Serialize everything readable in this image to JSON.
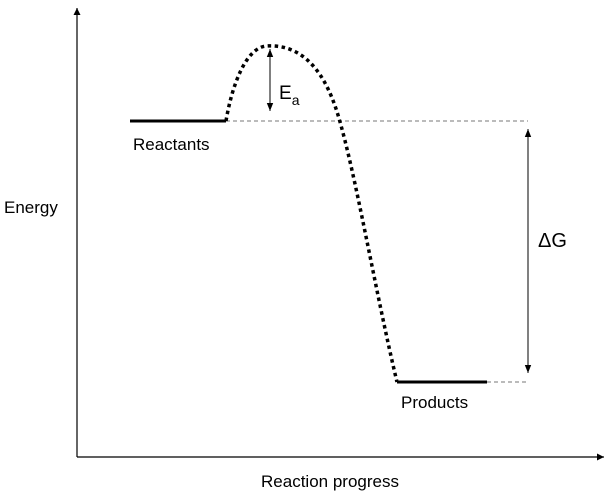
{
  "diagram": {
    "y_axis_label": "Energy",
    "x_axis_label": "Reaction progress",
    "reactants_label": "Reactants",
    "products_label": "Products",
    "activation_energy_label": {
      "main": "E",
      "subscript": "a"
    },
    "delta_g_label": "ΔG",
    "colors": {
      "line": "#000000",
      "guide": "#777777",
      "background": "#ffffff"
    }
  }
}
